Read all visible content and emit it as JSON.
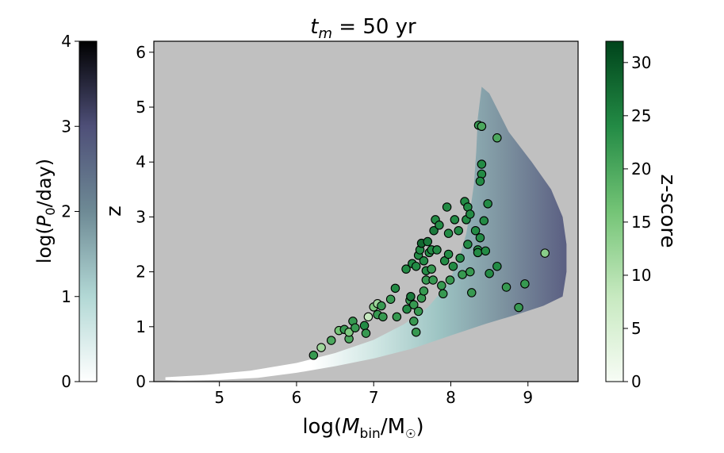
{
  "chart_data": {
    "type": "scatter",
    "title": {
      "prefix": "t",
      "sub": "m",
      "suffix": " = 50 yr"
    },
    "xlabel": {
      "prefix": "log(",
      "italic": "M",
      "sub": "bin",
      "mid": "/M",
      "odot": "☉",
      "suffix": ")"
    },
    "ylabel": "z",
    "xlim": [
      4.15,
      9.65
    ],
    "ylim": [
      0,
      6.2
    ],
    "xticks": [
      "5",
      "6",
      "7",
      "8",
      "9"
    ],
    "yticks": [
      "0",
      "1",
      "2",
      "3",
      "4",
      "5",
      "6"
    ],
    "background_color": "#c0c0c0",
    "region_boundary": [
      [
        4.3,
        0.08
      ],
      [
        4.8,
        0.12
      ],
      [
        5.4,
        0.2
      ],
      [
        6.0,
        0.34
      ],
      [
        6.5,
        0.52
      ],
      [
        7.0,
        0.76
      ],
      [
        7.4,
        1.05
      ],
      [
        7.7,
        1.35
      ],
      [
        7.95,
        1.75
      ],
      [
        8.1,
        2.2
      ],
      [
        8.2,
        2.7
      ],
      [
        8.25,
        3.1
      ],
      [
        8.3,
        3.6
      ],
      [
        8.33,
        4.2
      ],
      [
        8.35,
        4.8
      ],
      [
        8.4,
        5.37
      ],
      [
        8.5,
        5.25
      ],
      [
        8.75,
        4.55
      ],
      [
        9.05,
        4.0
      ],
      [
        9.3,
        3.5
      ],
      [
        9.45,
        3.0
      ],
      [
        9.5,
        2.5
      ],
      [
        9.5,
        2.0
      ],
      [
        9.45,
        1.55
      ],
      [
        9.2,
        1.38
      ],
      [
        8.85,
        1.22
      ],
      [
        8.45,
        1.05
      ],
      [
        8.0,
        0.84
      ],
      [
        7.5,
        0.6
      ],
      [
        7.0,
        0.42
      ],
      [
        6.5,
        0.28
      ],
      [
        6.0,
        0.16
      ],
      [
        5.5,
        0.07
      ],
      [
        5.0,
        0.03
      ],
      [
        4.5,
        0.02
      ],
      [
        4.3,
        0.03
      ]
    ],
    "left_colorbar": {
      "label": "log(P0/day)",
      "label_prefix": "log(",
      "label_italic": "P",
      "label_sub": "0",
      "label_suffix": "/day)",
      "range": [
        0,
        4
      ],
      "ticks": [
        "0",
        "1",
        "2",
        "3",
        "4"
      ],
      "colors": [
        "#ffffff",
        "#b2d8d5",
        "#6e8a95",
        "#4e4f78",
        "#000000"
      ]
    },
    "right_colorbar": {
      "label": "z-score",
      "range": [
        0,
        32
      ],
      "ticks": [
        "0",
        "5",
        "10",
        "15",
        "20",
        "25",
        "30"
      ],
      "colors": [
        "#f7fcf5",
        "#c7e9c0",
        "#74c476",
        "#238b45",
        "#00441b"
      ]
    },
    "points": [
      {
        "x": 6.22,
        "y": 0.48,
        "s": 22
      },
      {
        "x": 6.32,
        "y": 0.62,
        "s": 12
      },
      {
        "x": 6.45,
        "y": 0.75,
        "s": 20
      },
      {
        "x": 6.55,
        "y": 0.93,
        "s": 16
      },
      {
        "x": 6.62,
        "y": 0.95,
        "s": 22
      },
      {
        "x": 6.68,
        "y": 0.78,
        "s": 20
      },
      {
        "x": 6.68,
        "y": 0.9,
        "s": 15
      },
      {
        "x": 6.73,
        "y": 1.1,
        "s": 22
      },
      {
        "x": 6.76,
        "y": 0.98,
        "s": 22
      },
      {
        "x": 6.88,
        "y": 1.02,
        "s": 24
      },
      {
        "x": 6.9,
        "y": 0.88,
        "s": 22
      },
      {
        "x": 6.93,
        "y": 1.18,
        "s": 8
      },
      {
        "x": 7.0,
        "y": 1.36,
        "s": 15
      },
      {
        "x": 7.05,
        "y": 1.22,
        "s": 22
      },
      {
        "x": 7.05,
        "y": 1.42,
        "s": 12
      },
      {
        "x": 7.1,
        "y": 1.38,
        "s": 22
      },
      {
        "x": 7.12,
        "y": 1.18,
        "s": 22
      },
      {
        "x": 7.22,
        "y": 1.5,
        "s": 22
      },
      {
        "x": 7.28,
        "y": 1.7,
        "s": 24
      },
      {
        "x": 7.3,
        "y": 1.18,
        "s": 22
      },
      {
        "x": 7.43,
        "y": 1.32,
        "s": 24
      },
      {
        "x": 7.42,
        "y": 2.05,
        "s": 24
      },
      {
        "x": 7.47,
        "y": 1.48,
        "s": 22
      },
      {
        "x": 7.48,
        "y": 1.55,
        "s": 26
      },
      {
        "x": 7.5,
        "y": 2.15,
        "s": 24
      },
      {
        "x": 7.52,
        "y": 1.1,
        "s": 22
      },
      {
        "x": 7.52,
        "y": 1.4,
        "s": 22
      },
      {
        "x": 7.55,
        "y": 0.9,
        "s": 22
      },
      {
        "x": 7.55,
        "y": 2.1,
        "s": 24
      },
      {
        "x": 7.58,
        "y": 1.28,
        "s": 22
      },
      {
        "x": 7.58,
        "y": 2.3,
        "s": 24
      },
      {
        "x": 7.6,
        "y": 2.4,
        "s": 24
      },
      {
        "x": 7.62,
        "y": 2.52,
        "s": 28
      },
      {
        "x": 7.62,
        "y": 1.52,
        "s": 22
      },
      {
        "x": 7.65,
        "y": 2.2,
        "s": 24
      },
      {
        "x": 7.65,
        "y": 1.65,
        "s": 22
      },
      {
        "x": 7.68,
        "y": 2.02,
        "s": 24
      },
      {
        "x": 7.68,
        "y": 1.85,
        "s": 22
      },
      {
        "x": 7.7,
        "y": 2.55,
        "s": 26
      },
      {
        "x": 7.72,
        "y": 2.35,
        "s": 24
      },
      {
        "x": 7.75,
        "y": 2.4,
        "s": 24
      },
      {
        "x": 7.75,
        "y": 2.05,
        "s": 22
      },
      {
        "x": 7.77,
        "y": 1.85,
        "s": 22
      },
      {
        "x": 7.78,
        "y": 2.75,
        "s": 26
      },
      {
        "x": 7.8,
        "y": 2.95,
        "s": 24
      },
      {
        "x": 7.82,
        "y": 2.4,
        "s": 24
      },
      {
        "x": 7.85,
        "y": 2.85,
        "s": 24
      },
      {
        "x": 7.88,
        "y": 1.75,
        "s": 22
      },
      {
        "x": 7.9,
        "y": 1.6,
        "s": 22
      },
      {
        "x": 7.92,
        "y": 2.2,
        "s": 24
      },
      {
        "x": 7.95,
        "y": 3.18,
        "s": 24
      },
      {
        "x": 7.97,
        "y": 2.7,
        "s": 24
      },
      {
        "x": 7.97,
        "y": 2.32,
        "s": 24
      },
      {
        "x": 7.99,
        "y": 1.85,
        "s": 22
      },
      {
        "x": 8.03,
        "y": 2.1,
        "s": 24
      },
      {
        "x": 8.05,
        "y": 2.95,
        "s": 24
      },
      {
        "x": 8.1,
        "y": 2.75,
        "s": 24
      },
      {
        "x": 8.12,
        "y": 2.25,
        "s": 24
      },
      {
        "x": 8.15,
        "y": 1.95,
        "s": 22
      },
      {
        "x": 8.18,
        "y": 3.28,
        "s": 24
      },
      {
        "x": 8.2,
        "y": 2.95,
        "s": 24
      },
      {
        "x": 8.22,
        "y": 2.5,
        "s": 24
      },
      {
        "x": 8.22,
        "y": 3.18,
        "s": 24
      },
      {
        "x": 8.25,
        "y": 3.05,
        "s": 24
      },
      {
        "x": 8.25,
        "y": 2.0,
        "s": 22
      },
      {
        "x": 8.27,
        "y": 1.62,
        "s": 22
      },
      {
        "x": 8.32,
        "y": 2.75,
        "s": 24
      },
      {
        "x": 8.35,
        "y": 2.4,
        "s": 24
      },
      {
        "x": 8.35,
        "y": 2.35,
        "s": 24
      },
      {
        "x": 8.36,
        "y": 4.67,
        "s": 22
      },
      {
        "x": 8.38,
        "y": 2.62,
        "s": 24
      },
      {
        "x": 8.4,
        "y": 4.65,
        "s": 20
      },
      {
        "x": 8.4,
        "y": 3.78,
        "s": 24
      },
      {
        "x": 8.4,
        "y": 3.96,
        "s": 24
      },
      {
        "x": 8.38,
        "y": 3.65,
        "s": 24
      },
      {
        "x": 8.43,
        "y": 2.93,
        "s": 24
      },
      {
        "x": 8.45,
        "y": 2.38,
        "s": 24
      },
      {
        "x": 8.48,
        "y": 3.24,
        "s": 24
      },
      {
        "x": 8.5,
        "y": 1.97,
        "s": 24
      },
      {
        "x": 8.6,
        "y": 2.1,
        "s": 24
      },
      {
        "x": 8.6,
        "y": 4.44,
        "s": 20
      },
      {
        "x": 8.72,
        "y": 1.72,
        "s": 22
      },
      {
        "x": 8.88,
        "y": 1.35,
        "s": 22
      },
      {
        "x": 8.96,
        "y": 1.78,
        "s": 22
      },
      {
        "x": 9.22,
        "y": 2.34,
        "s": 14
      }
    ]
  }
}
